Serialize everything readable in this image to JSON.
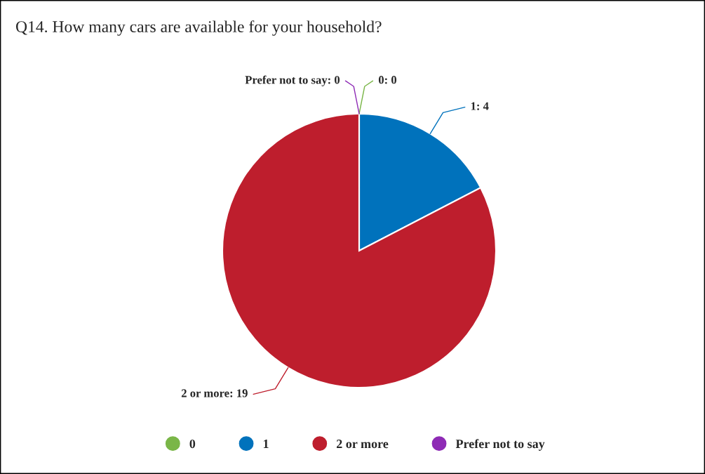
{
  "chart_data": {
    "type": "pie",
    "title": "Q14. How many cars are available for your household?",
    "categories": [
      "0",
      "1",
      "2 or more",
      "Prefer not to say"
    ],
    "values": [
      0,
      4,
      19,
      0
    ],
    "colors": [
      "#7ab648",
      "#0072bc",
      "#be1e2d",
      "#8e2bb5"
    ],
    "value_labels": [
      "0: 0",
      "1: 4",
      "2 or more: 19",
      "Prefer not to say: 0"
    ],
    "legend": "bottom"
  }
}
